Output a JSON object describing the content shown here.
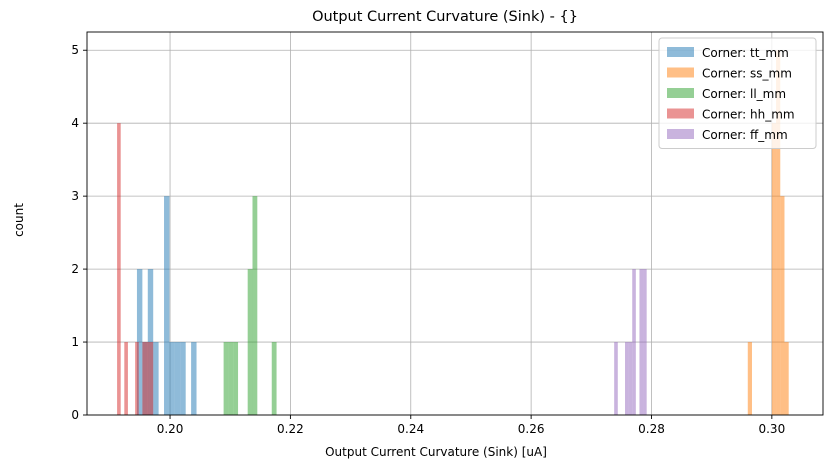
{
  "chart_data": {
    "type": "histogram",
    "title": "Output Current Curvature (Sink) - {}",
    "xlabel": "Output Current Curvature (Sink) [uA]",
    "ylabel": "count",
    "xlim": [
      0.1862,
      0.3085
    ],
    "ylim": [
      0,
      5.25
    ],
    "xticks": [
      0.2,
      0.22,
      0.24,
      0.26,
      0.28,
      0.3
    ],
    "xtick_labels": [
      "0.20",
      "0.22",
      "0.24",
      "0.26",
      "0.28",
      "0.30"
    ],
    "yticks": [
      0,
      1,
      2,
      3,
      4,
      5
    ],
    "ytick_labels": [
      "0",
      "1",
      "2",
      "3",
      "4",
      "5"
    ],
    "grid": true,
    "bar_alpha": 0.5,
    "legend_position": "top-right",
    "series": [
      {
        "name": "Corner: tt_mm",
        "color": "#1f77b4",
        "bars": [
          {
            "x0": 0.1945,
            "x1": 0.1954,
            "count": 2
          },
          {
            "x0": 0.1954,
            "x1": 0.1963,
            "count": 1
          },
          {
            "x0": 0.1963,
            "x1": 0.1972,
            "count": 2
          },
          {
            "x0": 0.1972,
            "x1": 0.1981,
            "count": 1
          },
          {
            "x0": 0.199,
            "x1": 0.1999,
            "count": 3
          },
          {
            "x0": 0.1999,
            "x1": 0.2008,
            "count": 1
          },
          {
            "x0": 0.2008,
            "x1": 0.2017,
            "count": 1
          },
          {
            "x0": 0.2017,
            "x1": 0.2026,
            "count": 1
          },
          {
            "x0": 0.2035,
            "x1": 0.2044,
            "count": 1
          }
        ]
      },
      {
        "name": "Corner: ss_mm",
        "color": "#ff7f0e",
        "bars": [
          {
            "x0": 0.296,
            "x1": 0.2967,
            "count": 1
          },
          {
            "x0": 0.3,
            "x1": 0.3007,
            "count": 4
          },
          {
            "x0": 0.3007,
            "x1": 0.3014,
            "count": 5
          },
          {
            "x0": 0.3014,
            "x1": 0.3021,
            "count": 3
          },
          {
            "x0": 0.3021,
            "x1": 0.3028,
            "count": 1
          }
        ]
      },
      {
        "name": "Corner: ll_mm",
        "color": "#2ca02c",
        "bars": [
          {
            "x0": 0.2089,
            "x1": 0.2097,
            "count": 1
          },
          {
            "x0": 0.2097,
            "x1": 0.2105,
            "count": 1
          },
          {
            "x0": 0.2105,
            "x1": 0.2113,
            "count": 1
          },
          {
            "x0": 0.2129,
            "x1": 0.2137,
            "count": 2
          },
          {
            "x0": 0.2137,
            "x1": 0.2145,
            "count": 3
          },
          {
            "x0": 0.2169,
            "x1": 0.2177,
            "count": 1
          }
        ]
      },
      {
        "name": "Corner: hh_mm",
        "color": "#d62728",
        "bars": [
          {
            "x0": 0.1912,
            "x1": 0.1918,
            "count": 4
          },
          {
            "x0": 0.1924,
            "x1": 0.193,
            "count": 1
          },
          {
            "x0": 0.1942,
            "x1": 0.1948,
            "count": 1
          },
          {
            "x0": 0.1954,
            "x1": 0.196,
            "count": 1
          },
          {
            "x0": 0.196,
            "x1": 0.1966,
            "count": 1
          },
          {
            "x0": 0.1966,
            "x1": 0.1972,
            "count": 1
          }
        ]
      },
      {
        "name": "Corner: ff_mm",
        "color": "#9467bd",
        "bars": [
          {
            "x0": 0.2738,
            "x1": 0.2744,
            "count": 1
          },
          {
            "x0": 0.2756,
            "x1": 0.2762,
            "count": 1
          },
          {
            "x0": 0.2762,
            "x1": 0.2768,
            "count": 1
          },
          {
            "x0": 0.2768,
            "x1": 0.2774,
            "count": 2
          },
          {
            "x0": 0.278,
            "x1": 0.2786,
            "count": 2
          },
          {
            "x0": 0.2786,
            "x1": 0.2792,
            "count": 2
          }
        ]
      }
    ]
  }
}
